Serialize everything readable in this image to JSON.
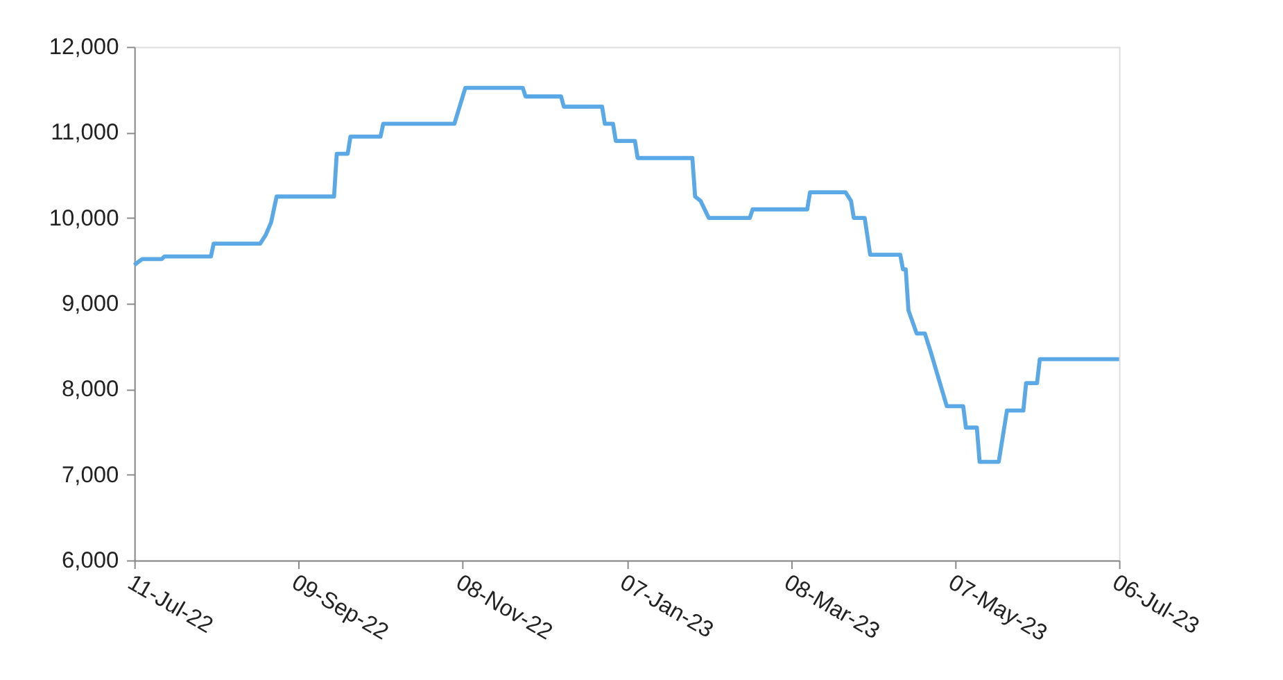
{
  "chart_data": {
    "type": "line",
    "x": [
      "2022-07-11",
      "2022-07-13",
      "2022-07-14",
      "2022-07-21",
      "2022-07-22",
      "2022-08-08",
      "2022-08-09",
      "2022-08-26",
      "2022-08-28",
      "2022-08-30",
      "2022-09-01",
      "2022-09-22",
      "2022-09-23",
      "2022-09-27",
      "2022-09-28",
      "2022-10-09",
      "2022-10-10",
      "2022-11-05",
      "2022-11-09",
      "2022-11-30",
      "2022-12-01",
      "2022-12-14",
      "2022-12-15",
      "2022-12-29",
      "2022-12-30",
      "2023-01-02",
      "2023-01-03",
      "2023-01-10",
      "2023-01-11",
      "2023-01-31",
      "2023-02-01",
      "2023-02-03",
      "2023-02-06",
      "2023-02-21",
      "2023-02-22",
      "2023-03-14",
      "2023-03-15",
      "2023-03-28",
      "2023-03-30",
      "2023-03-31",
      "2023-04-04",
      "2023-04-06",
      "2023-04-17",
      "2023-04-18",
      "2023-04-19",
      "2023-04-20",
      "2023-04-23",
      "2023-04-26",
      "2023-04-28",
      "2023-05-04",
      "2023-05-10",
      "2023-05-11",
      "2023-05-15",
      "2023-05-16",
      "2023-05-23",
      "2023-05-26",
      "2023-06-01",
      "2023-06-02",
      "2023-06-06",
      "2023-06-07",
      "2023-07-06"
    ],
    "series": [
      {
        "color": "#5aa9e6",
        "values": [
          9450,
          9500,
          9520,
          9520,
          9550,
          9550,
          9700,
          9700,
          9800,
          9950,
          10250,
          10250,
          10750,
          10750,
          10950,
          10950,
          11100,
          11100,
          11520,
          11520,
          11420,
          11420,
          11300,
          11300,
          11100,
          11100,
          10900,
          10900,
          10700,
          10700,
          10250,
          10200,
          10000,
          10000,
          10100,
          10100,
          10300,
          10300,
          10200,
          10000,
          10000,
          9570,
          9570,
          9400,
          9400,
          8920,
          8650,
          8650,
          8450,
          7800,
          7800,
          7550,
          7550,
          7150,
          7150,
          7750,
          7750,
          8070,
          8070,
          8350,
          8350
        ]
      }
    ],
    "xlim": [
      "2022-07-11",
      "2023-07-06"
    ],
    "xticks": [
      {
        "value": "2022-07-11",
        "label": "11-Jul-22"
      },
      {
        "value": "2022-09-09",
        "label": "09-Sep-22"
      },
      {
        "value": "2022-11-08",
        "label": "08-Nov-22"
      },
      {
        "value": "2023-01-07",
        "label": "07-Jan-23"
      },
      {
        "value": "2023-03-08",
        "label": "08-Mar-23"
      },
      {
        "value": "2023-05-07",
        "label": "07-May-23"
      },
      {
        "value": "2023-07-06",
        "label": "06-Jul-23"
      }
    ],
    "ylim": [
      6000,
      12000
    ],
    "yticks": [
      {
        "value": 6000,
        "label": "6,000"
      },
      {
        "value": 7000,
        "label": "7,000"
      },
      {
        "value": 8000,
        "label": "8,000"
      },
      {
        "value": 9000,
        "label": "9,000"
      },
      {
        "value": 10000,
        "label": "10,000"
      },
      {
        "value": 11000,
        "label": "11,000"
      },
      {
        "value": 12000,
        "label": "12,000"
      }
    ],
    "grid": false,
    "marker": "none",
    "line_style": "solid"
  }
}
